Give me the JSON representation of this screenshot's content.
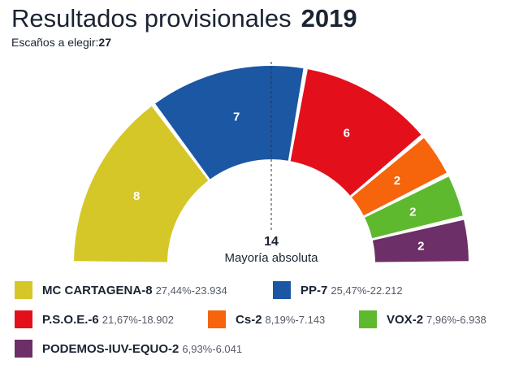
{
  "header": {
    "title": "Resultados provisionales",
    "year": "2019",
    "seats_label": "Escaños a elegir:",
    "seats_total": "27"
  },
  "chart_data": {
    "type": "pie",
    "total_seats": 27,
    "majority": {
      "value": "14",
      "label": "Mayoría absoluta"
    },
    "parties": [
      {
        "name": "MC CARTAGENA",
        "seats": 8,
        "seats_label": "8",
        "percent": "27,44%",
        "votes": "23.934",
        "color": "#d6c728",
        "text_color": "#ffffff"
      },
      {
        "name": "PP",
        "seats": 7,
        "seats_label": "7",
        "percent": "25,47%",
        "votes": "22.212",
        "color": "#1b57a3",
        "text_color": "#ffffff"
      },
      {
        "name": "P.S.O.E.",
        "seats": 6,
        "seats_label": "6",
        "percent": "21,67%",
        "votes": "18.902",
        "color": "#e3101c",
        "text_color": "#ffffff"
      },
      {
        "name": "Cs",
        "seats": 2,
        "seats_label": "2",
        "percent": "8,19%",
        "votes": "7.143",
        "color": "#f6640c",
        "text_color": "#ffffff"
      },
      {
        "name": "VOX",
        "seats": 2,
        "seats_label": "2",
        "percent": "7,96%",
        "votes": "6.938",
        "color": "#5eb92e",
        "text_color": "#ffffff"
      },
      {
        "name": "PODEMOS-IUV-EQUO",
        "seats": 2,
        "seats_label": "2",
        "percent": "6,93%",
        "votes": "6.041",
        "color": "#6c2f67",
        "text_color": "#ffffff"
      }
    ]
  },
  "legend": {
    "seat_separator": "- ",
    "votes_separator": "- "
  }
}
